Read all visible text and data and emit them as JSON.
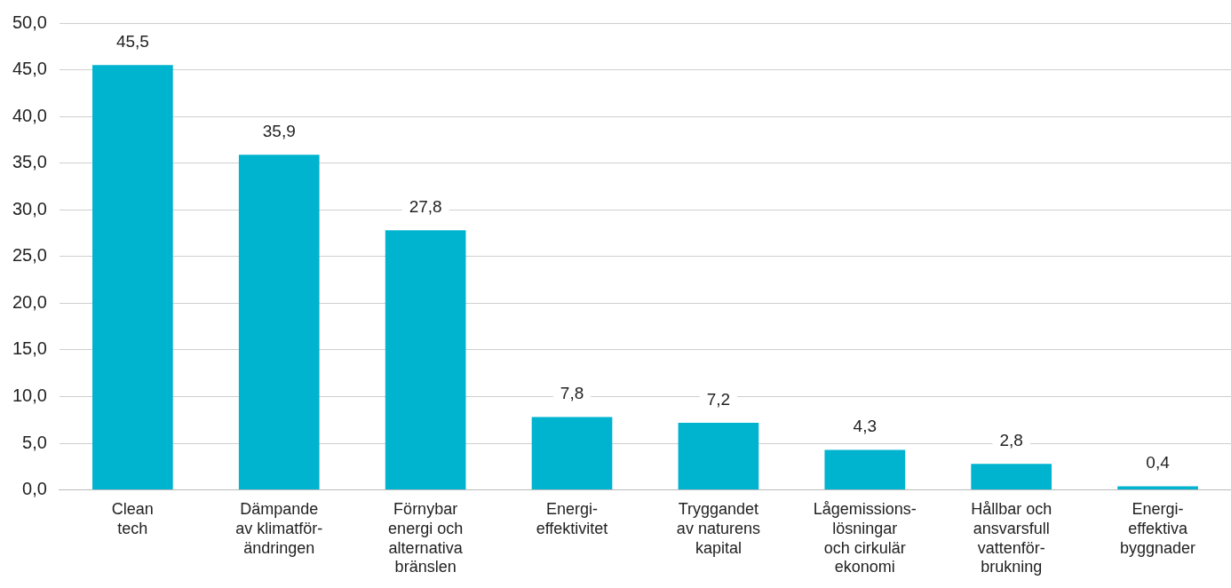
{
  "chart_data": {
    "type": "bar",
    "categories": [
      "Clean\ntech",
      "Dämpande\nav klimatför-\nändringen",
      "Förnybar\nenergi och\nalternativa\nbränslen",
      "Energi-\neffektivitet",
      "Tryggandet\nav naturens\nkapital",
      "Lågemissions-\nlösningar\noch cirkulär\nekonomi",
      "Hållbar och\nansvarsfull\nvattenför-\nbrukning",
      "Energi-\neffektiva\nbyggnader"
    ],
    "values": [
      45.5,
      35.9,
      27.8,
      7.8,
      7.2,
      4.3,
      2.8,
      0.4
    ],
    "value_labels": [
      "45,5",
      "35,9",
      "27,8",
      "7,8",
      "7,2",
      "4,3",
      "2,8",
      "0,4"
    ],
    "color": "#00b4d0",
    "ylim": [
      0,
      50
    ],
    "yticks": [
      {
        "value": 0,
        "label": "0,0"
      },
      {
        "value": 5,
        "label": "5,0"
      },
      {
        "value": 10,
        "label": "10,0"
      },
      {
        "value": 15,
        "label": "15,0"
      },
      {
        "value": 20,
        "label": "20,0"
      },
      {
        "value": 25,
        "label": "25,0"
      },
      {
        "value": 30,
        "label": "30,0"
      },
      {
        "value": 35,
        "label": "35,0"
      },
      {
        "value": 40,
        "label": "40,0"
      },
      {
        "value": 45,
        "label": "45,0"
      },
      {
        "value": 50,
        "label": "50,0"
      }
    ],
    "grid": "y"
  }
}
